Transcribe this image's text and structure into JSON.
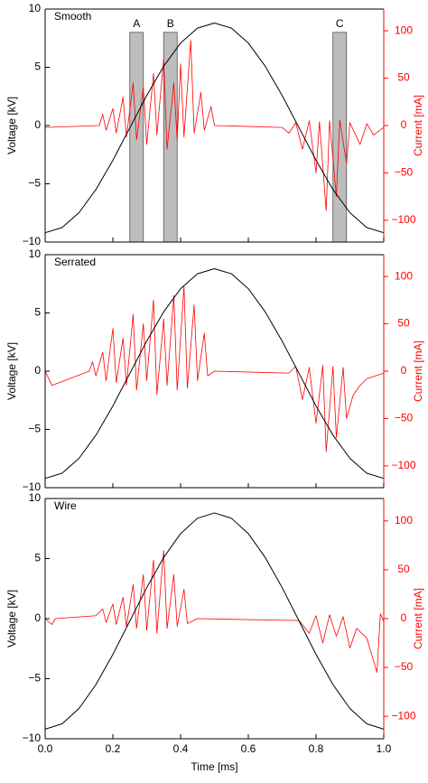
{
  "chart_data": [
    {
      "type": "line",
      "label": "Smooth",
      "ylabel": "Voltage [kV]",
      "y2label": "Current [mA]",
      "xlim": [
        0,
        1
      ],
      "xticks": [
        0,
        0.2,
        0.4,
        0.6,
        0.8,
        1
      ],
      "ylim": [
        -10,
        10
      ],
      "yticks": [
        {
          "value": -10,
          "label": "−10"
        },
        {
          "value": -5,
          "label": "−5"
        },
        0,
        5,
        10
      ],
      "y2lim": [
        -123,
        123
      ],
      "y2ticks": [
        {
          "value": -100,
          "label": "−100"
        },
        {
          "value": -50,
          "label": "−50"
        },
        0,
        50,
        100
      ],
      "x": [
        0,
        0.05,
        0.1,
        0.15,
        0.2,
        0.25,
        0.3,
        0.35,
        0.4,
        0.45,
        0.5,
        0.55,
        0.6,
        0.65,
        0.7,
        0.75,
        0.8,
        0.85,
        0.9,
        0.95,
        1
      ],
      "regions": [
        {
          "x": [
            0.25,
            0.29
          ],
          "y": [
            -10,
            8
          ],
          "label": "A"
        },
        {
          "x": [
            0.35,
            0.39
          ],
          "y": [
            -10,
            8
          ],
          "label": "B"
        },
        {
          "x": [
            0.85,
            0.89
          ],
          "y": [
            -10,
            8
          ],
          "label": "C"
        }
      ],
      "series": [
        {
          "color": "#000000",
          "values": [
            -9.2,
            -8.76,
            -7.48,
            -5.49,
            -2.98,
            -0.2,
            2.58,
            5.09,
            7.08,
            8.36,
            8.8,
            8.36,
            7.08,
            5.09,
            2.58,
            -0.2,
            -2.98,
            -5.49,
            -7.48,
            -8.76,
            -9.2
          ]
        },
        {
          "color": "#ff0000",
          "axis": "y2",
          "x": [
            0,
            0.16,
            0.17,
            0.18,
            0.2,
            0.21,
            0.23,
            0.24,
            0.26,
            0.27,
            0.29,
            0.3,
            0.32,
            0.33,
            0.35,
            0.36,
            0.38,
            0.39,
            0.4,
            0.41,
            0.43,
            0.44,
            0.46,
            0.47,
            0.49,
            0.5,
            0.7,
            0.72,
            0.74,
            0.76,
            0.78,
            0.8,
            0.81,
            0.83,
            0.84,
            0.86,
            0.87,
            0.89,
            0.9,
            0.93,
            0.95,
            0.97,
            1
          ],
          "values": [
            -2,
            0,
            12,
            -5,
            18,
            -8,
            30,
            -12,
            45,
            -15,
            40,
            -20,
            55,
            -10,
            70,
            -25,
            45,
            -15,
            65,
            -12,
            90,
            -8,
            35,
            -5,
            20,
            0,
            -2,
            -8,
            3,
            -25,
            5,
            -50,
            4,
            -90,
            5,
            -75,
            6,
            -40,
            3,
            -20,
            2,
            -10,
            -2
          ]
        }
      ]
    },
    {
      "type": "line",
      "label": "Serrated",
      "ylabel": "Voltage [kV]",
      "y2label": "Current [mA]",
      "xlim": [
        0,
        1
      ],
      "xticks": [
        0,
        0.2,
        0.4,
        0.6,
        0.8,
        1
      ],
      "ylim": [
        -10,
        10
      ],
      "yticks": [
        {
          "value": -10,
          "label": "−10"
        },
        {
          "value": -5,
          "label": "−5"
        },
        0,
        5,
        10
      ],
      "y2lim": [
        -123,
        123
      ],
      "y2ticks": [
        {
          "value": -100,
          "label": "−100"
        },
        {
          "value": -50,
          "label": "−50"
        },
        0,
        50,
        100
      ],
      "x": [
        0,
        0.05,
        0.1,
        0.15,
        0.2,
        0.25,
        0.3,
        0.35,
        0.4,
        0.45,
        0.5,
        0.55,
        0.6,
        0.65,
        0.7,
        0.75,
        0.8,
        0.85,
        0.9,
        0.95,
        1
      ],
      "series": [
        {
          "color": "#000000",
          "values": [
            -9.2,
            -8.76,
            -7.48,
            -5.49,
            -2.98,
            -0.2,
            2.58,
            5.09,
            7.08,
            8.36,
            8.8,
            8.36,
            7.08,
            5.09,
            2.58,
            -0.2,
            -2.98,
            -5.49,
            -7.48,
            -8.76,
            -9.2
          ]
        },
        {
          "color": "#ff0000",
          "axis": "y2",
          "x": [
            0,
            0.02,
            0.13,
            0.14,
            0.15,
            0.17,
            0.18,
            0.2,
            0.21,
            0.23,
            0.24,
            0.26,
            0.27,
            0.29,
            0.3,
            0.32,
            0.33,
            0.35,
            0.36,
            0.38,
            0.39,
            0.41,
            0.42,
            0.44,
            0.45,
            0.47,
            0.48,
            0.5,
            0.72,
            0.74,
            0.76,
            0.78,
            0.8,
            0.82,
            0.83,
            0.85,
            0.86,
            0.88,
            0.89,
            0.91,
            0.93,
            0.95,
            1
          ],
          "values": [
            0,
            -15,
            0,
            10,
            -5,
            20,
            -10,
            45,
            -12,
            35,
            -15,
            60,
            -20,
            50,
            -10,
            75,
            -25,
            55,
            -15,
            80,
            -20,
            90,
            -18,
            70,
            -10,
            40,
            -5,
            0,
            -2,
            5,
            -30,
            4,
            -55,
            6,
            -85,
            5,
            -70,
            4,
            -50,
            -25,
            -15,
            -8,
            -2
          ]
        }
      ]
    },
    {
      "type": "line",
      "label": "Wire",
      "ylabel": "Voltage [kV]",
      "y2label": "Current [mA]",
      "xlabel": "Time [ms]",
      "xlim": [
        0,
        1
      ],
      "xticks": [
        {
          "value": 0,
          "label": "0.0"
        },
        {
          "value": 0.2,
          "label": "0.2"
        },
        {
          "value": 0.4,
          "label": "0.4"
        },
        {
          "value": 0.6,
          "label": "0.6"
        },
        {
          "value": 0.8,
          "label": "0.8"
        },
        {
          "value": 1,
          "label": "1.0"
        }
      ],
      "ylim": [
        -10,
        10
      ],
      "yticks": [
        {
          "value": -10,
          "label": "−10"
        },
        {
          "value": -5,
          "label": "−5"
        },
        0,
        5,
        10
      ],
      "y2lim": [
        -123,
        123
      ],
      "y2ticks": [
        {
          "value": -100,
          "label": "−100"
        },
        {
          "value": -50,
          "label": "−50"
        },
        0,
        50,
        100
      ],
      "x": [
        0,
        0.05,
        0.1,
        0.15,
        0.2,
        0.25,
        0.3,
        0.35,
        0.4,
        0.45,
        0.5,
        0.55,
        0.6,
        0.65,
        0.7,
        0.75,
        0.8,
        0.85,
        0.9,
        0.95,
        1
      ],
      "series": [
        {
          "color": "#000000",
          "values": [
            -9.2,
            -8.76,
            -7.48,
            -5.49,
            -2.98,
            -0.2,
            2.58,
            5.09,
            7.08,
            8.36,
            8.8,
            8.36,
            7.08,
            5.09,
            2.58,
            -0.2,
            -2.98,
            -5.49,
            -7.48,
            -8.76,
            -9.2
          ]
        },
        {
          "color": "#ff0000",
          "axis": "y2",
          "x": [
            0,
            0.02,
            0.03,
            0.15,
            0.17,
            0.18,
            0.2,
            0.21,
            0.23,
            0.24,
            0.26,
            0.27,
            0.29,
            0.3,
            0.32,
            0.33,
            0.35,
            0.36,
            0.38,
            0.39,
            0.41,
            0.42,
            0.45,
            0.75,
            0.78,
            0.8,
            0.82,
            0.84,
            0.86,
            0.88,
            0.9,
            0.92,
            0.95,
            0.98,
            0.99,
            1
          ],
          "values": [
            0,
            -6,
            0,
            3,
            10,
            -4,
            15,
            -6,
            22,
            -8,
            35,
            -10,
            45,
            -12,
            60,
            -15,
            70,
            -10,
            45,
            -8,
            30,
            -5,
            0,
            -2,
            -15,
            3,
            -25,
            4,
            -18,
            2,
            -30,
            -10,
            -20,
            -55,
            5,
            -3
          ]
        }
      ]
    }
  ]
}
